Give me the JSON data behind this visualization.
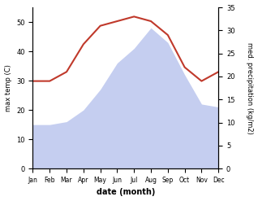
{
  "months": [
    "Jan",
    "Feb",
    "Mar",
    "Apr",
    "May",
    "Jun",
    "Jul",
    "Aug",
    "Sep",
    "Oct",
    "Nov",
    "Dec"
  ],
  "temp": [
    15,
    15,
    16,
    20,
    27,
    36,
    41,
    48,
    43,
    32,
    22,
    21
  ],
  "precip": [
    19,
    19,
    21,
    27,
    31,
    32,
    33,
    32,
    29,
    22,
    19,
    21
  ],
  "temp_color_fill": "#c5cef0",
  "precip_line_color": "#c0392b",
  "temp_ylim": [
    0,
    55
  ],
  "precip_ylim": [
    0,
    35
  ],
  "temp_yticks": [
    0,
    10,
    20,
    30,
    40,
    50
  ],
  "precip_yticks": [
    0,
    5,
    10,
    15,
    20,
    25,
    30,
    35
  ],
  "xlabel": "date (month)",
  "ylabel_left": "max temp (C)",
  "ylabel_right": "med. precipitation (kg/m2)",
  "background_color": "#ffffff"
}
